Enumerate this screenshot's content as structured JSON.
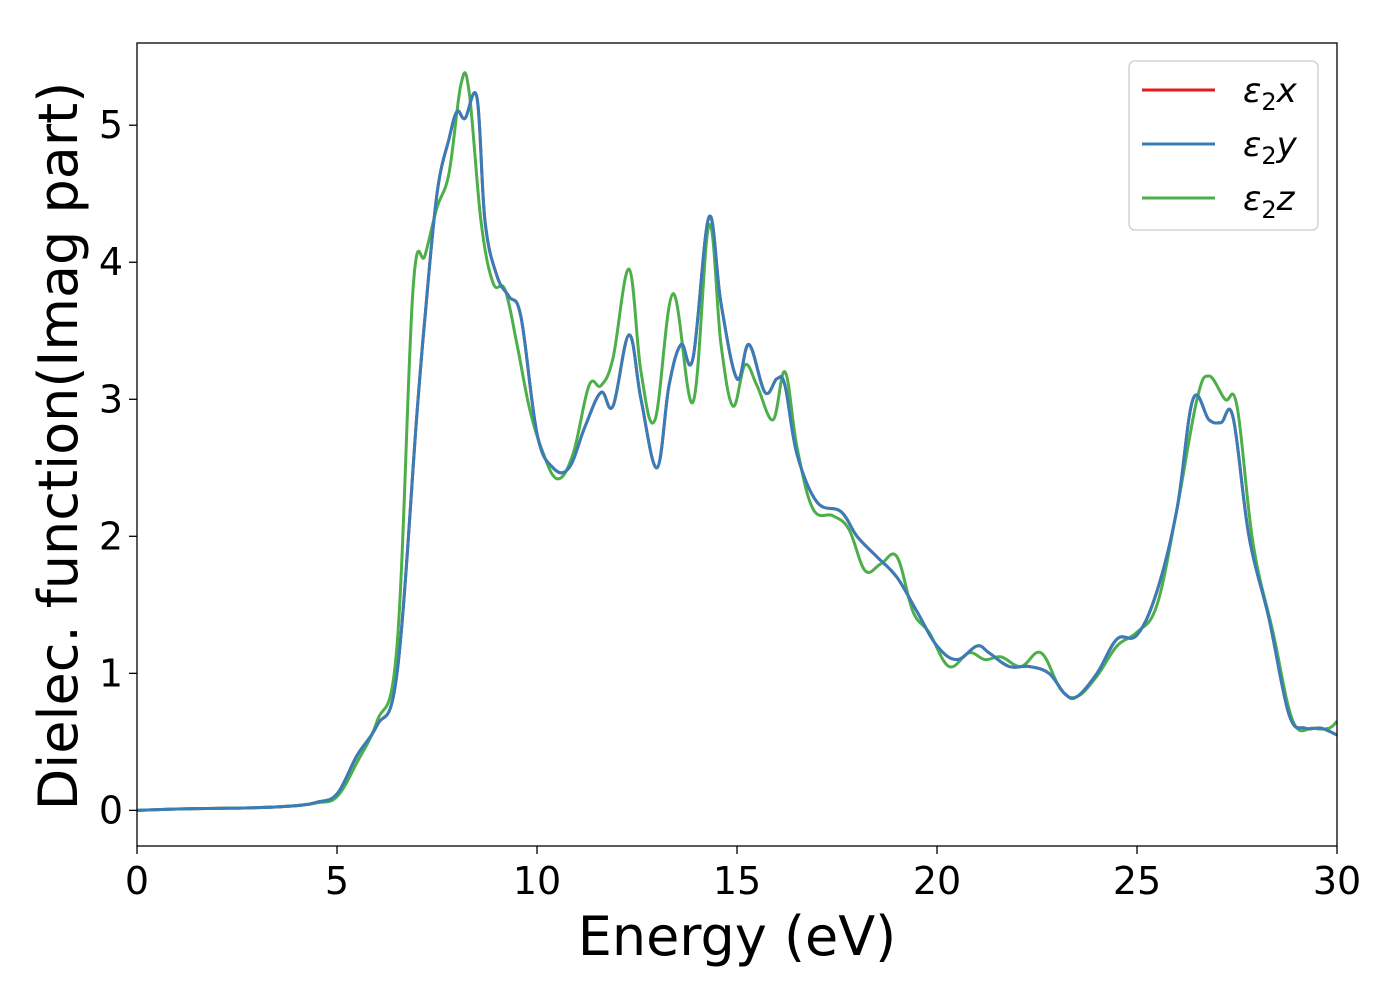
{
  "chart_data": {
    "type": "line",
    "title": "",
    "xlabel": "Energy (eV)",
    "ylabel": "Dielec. function(Imag part)",
    "xlim": [
      0,
      30
    ],
    "ylim": [
      -0.26,
      5.6
    ],
    "xticks": [
      "0",
      "5",
      "10",
      "15",
      "20",
      "25",
      "30"
    ],
    "yticks": [
      "0",
      "1",
      "2",
      "3",
      "4",
      "5"
    ],
    "grid": false,
    "legend_position": "top-right",
    "series": [
      {
        "name": "ε2x",
        "color": "#e41a1c",
        "x": [
          0,
          1,
          2,
          3,
          4,
          4.5,
          5,
          5.5,
          6,
          6.5,
          7,
          7.2,
          7.5,
          7.8,
          8,
          8.2,
          8.5,
          8.7,
          9,
          9.3,
          9.6,
          10,
          10.4,
          10.8,
          11.2,
          11.6,
          11.9,
          12.3,
          12.6,
          13,
          13.3,
          13.6,
          13.9,
          14.3,
          14.6,
          15,
          15.3,
          15.7,
          16,
          16.2,
          16.5,
          17,
          17.6,
          18,
          18.5,
          19,
          19.5,
          20,
          20.5,
          21,
          21.3,
          21.8,
          22.3,
          22.8,
          23.2,
          23.5,
          24,
          24.5,
          25,
          25.5,
          26,
          26.4,
          26.8,
          27.1,
          27.4,
          27.8,
          28.3,
          28.8,
          29.2,
          29.6,
          30
        ],
        "y": [
          0.0,
          0.01,
          0.015,
          0.02,
          0.035,
          0.06,
          0.12,
          0.4,
          0.62,
          1.0,
          2.9,
          3.6,
          4.5,
          4.9,
          5.1,
          5.05,
          5.2,
          4.3,
          3.9,
          3.75,
          3.6,
          2.75,
          2.5,
          2.5,
          2.8,
          3.05,
          2.95,
          3.47,
          3.0,
          2.5,
          3.1,
          3.4,
          3.3,
          4.33,
          3.7,
          3.15,
          3.4,
          3.05,
          3.15,
          3.1,
          2.6,
          2.25,
          2.18,
          2.0,
          1.85,
          1.7,
          1.45,
          1.2,
          1.1,
          1.2,
          1.15,
          1.05,
          1.05,
          1.0,
          0.85,
          0.83,
          1.0,
          1.25,
          1.28,
          1.6,
          2.2,
          3.0,
          2.85,
          2.83,
          2.87,
          2.0,
          1.4,
          0.7,
          0.6,
          0.6,
          0.55
        ]
      },
      {
        "name": "ε2y",
        "color": "#377eb8",
        "x": [
          0,
          1,
          2,
          3,
          4,
          4.5,
          5,
          5.5,
          6,
          6.5,
          7,
          7.2,
          7.5,
          7.8,
          8,
          8.2,
          8.5,
          8.7,
          9,
          9.3,
          9.6,
          10,
          10.4,
          10.8,
          11.2,
          11.6,
          11.9,
          12.3,
          12.6,
          13,
          13.3,
          13.6,
          13.9,
          14.3,
          14.6,
          15,
          15.3,
          15.7,
          16,
          16.2,
          16.5,
          17,
          17.6,
          18,
          18.5,
          19,
          19.5,
          20,
          20.5,
          21,
          21.3,
          21.8,
          22.3,
          22.8,
          23.2,
          23.5,
          24,
          24.5,
          25,
          25.5,
          26,
          26.4,
          26.8,
          27.1,
          27.4,
          27.8,
          28.3,
          28.8,
          29.2,
          29.6,
          30
        ],
        "y": [
          0.0,
          0.01,
          0.015,
          0.02,
          0.035,
          0.06,
          0.12,
          0.4,
          0.62,
          1.0,
          2.9,
          3.6,
          4.5,
          4.9,
          5.1,
          5.05,
          5.2,
          4.3,
          3.9,
          3.75,
          3.6,
          2.75,
          2.5,
          2.5,
          2.8,
          3.05,
          2.95,
          3.47,
          3.0,
          2.5,
          3.1,
          3.4,
          3.3,
          4.33,
          3.7,
          3.15,
          3.4,
          3.05,
          3.15,
          3.1,
          2.6,
          2.25,
          2.18,
          2.0,
          1.85,
          1.7,
          1.45,
          1.2,
          1.1,
          1.2,
          1.15,
          1.05,
          1.05,
          1.0,
          0.85,
          0.83,
          1.0,
          1.25,
          1.28,
          1.6,
          2.2,
          3.0,
          2.85,
          2.83,
          2.87,
          2.0,
          1.4,
          0.7,
          0.6,
          0.6,
          0.55
        ]
      },
      {
        "name": "ε2z",
        "color": "#4daf4a",
        "x": [
          0,
          1,
          2,
          3,
          4,
          4.5,
          5,
          5.5,
          6,
          6.5,
          6.9,
          7.2,
          7.5,
          7.8,
          8.1,
          8.3,
          8.6,
          8.9,
          9.2,
          9.5,
          9.8,
          10.1,
          10.5,
          10.9,
          11.3,
          11.6,
          11.9,
          12.3,
          12.6,
          12.95,
          13.4,
          13.9,
          14.3,
          14.6,
          14.9,
          15.2,
          15.5,
          15.9,
          16.2,
          16.5,
          16.9,
          17.4,
          17.8,
          18.2,
          18.6,
          19,
          19.4,
          19.8,
          20.3,
          20.8,
          21.2,
          21.6,
          22.1,
          22.6,
          23.1,
          23.5,
          24,
          24.5,
          25,
          25.5,
          26,
          26.5,
          26.8,
          27.2,
          27.5,
          27.9,
          28.4,
          28.9,
          29.4,
          29.8,
          30
        ],
        "y": [
          0.0,
          0.01,
          0.015,
          0.02,
          0.035,
          0.055,
          0.1,
          0.35,
          0.65,
          1.2,
          3.8,
          4.05,
          4.4,
          4.65,
          5.3,
          5.25,
          4.3,
          3.85,
          3.8,
          3.4,
          2.95,
          2.65,
          2.42,
          2.6,
          3.1,
          3.1,
          3.3,
          3.95,
          3.2,
          2.85,
          3.77,
          2.98,
          4.27,
          3.4,
          2.95,
          3.25,
          3.1,
          2.85,
          3.2,
          2.65,
          2.2,
          2.15,
          2.05,
          1.75,
          1.8,
          1.85,
          1.45,
          1.3,
          1.05,
          1.15,
          1.1,
          1.12,
          1.05,
          1.15,
          0.88,
          0.83,
          0.98,
          1.2,
          1.3,
          1.5,
          2.2,
          3.0,
          3.17,
          3.0,
          2.95,
          1.95,
          1.3,
          0.65,
          0.6,
          0.6,
          0.65
        ]
      }
    ]
  }
}
